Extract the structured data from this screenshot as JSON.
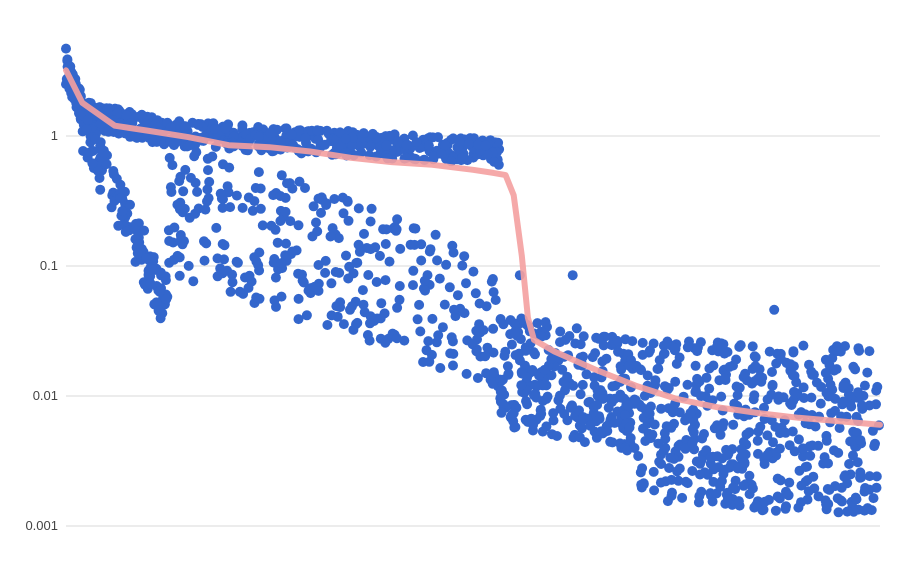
{
  "chart_data": {
    "type": "scatter",
    "title": "",
    "xlabel": "",
    "ylabel": "",
    "y_scale": "log",
    "ylim": [
      0.001,
      4.7
    ],
    "xlim": [
      0,
      2000
    ],
    "grid": true,
    "y_ticks": [
      {
        "value": 1,
        "label": "1"
      },
      {
        "value": 0.1,
        "label": "0.1"
      },
      {
        "value": 0.01,
        "label": "0.01"
      },
      {
        "value": 0.001,
        "label": "0.001"
      }
    ],
    "colors": {
      "points": "#3366cc",
      "trend": "#f4a0a0",
      "grid": "#d9d9d9",
      "text": "#444444"
    },
    "series": [
      {
        "type": "scatter",
        "segments": [
          {
            "x": [
              0,
              40
            ],
            "y_start": 3.2,
            "y_end": 1.6,
            "count": 60,
            "upper_spread": 1.3,
            "lower_spread": 0.75
          },
          {
            "x": [
              40,
              250
            ],
            "y_start": 1.5,
            "y_end": 1.05,
            "count": 180,
            "upper_spread": 1.25,
            "lower_spread": 0.8
          },
          {
            "x": [
              40,
              250
            ],
            "y_start": 1.1,
            "y_end": 0.05,
            "count": 120,
            "upper_spread": 1.6,
            "lower_spread": 0.6
          },
          {
            "x": [
              250,
              1065
            ],
            "y_start": 1.05,
            "y_end": 0.75,
            "count": 360,
            "upper_spread": 1.25,
            "lower_spread": 0.8
          },
          {
            "x": [
              250,
              1065
            ],
            "y_start": 0.3,
            "y_end": 0.035,
            "count": 320,
            "upper_spread": 3.5,
            "lower_spread": 0.3
          },
          {
            "x": [
              1065,
              1400
            ],
            "y_start": 0.015,
            "y_end": 0.009,
            "count": 260,
            "upper_spread": 3.0,
            "lower_spread": 0.4
          },
          {
            "x": [
              1400,
              2000
            ],
            "y_start": 0.007,
            "y_end": 0.006,
            "count": 480,
            "upper_spread": 4.0,
            "lower_spread": 0.2
          }
        ],
        "highlights": [
          {
            "x": 0,
            "y": 4.7
          },
          {
            "x": 1740,
            "y": 0.046
          },
          {
            "x": 1115,
            "y": 0.085
          },
          {
            "x": 1245,
            "y": 0.085
          }
        ]
      },
      {
        "type": "line",
        "x": [
          0,
          40,
          120,
          200,
          300,
          400,
          500,
          600,
          700,
          800,
          900,
          1000,
          1050,
          1080,
          1100,
          1120,
          1135,
          1150,
          1200,
          1300,
          1400,
          1500,
          1600,
          1700,
          1800,
          1900,
          2000
        ],
        "y": [
          3.2,
          1.8,
          1.2,
          1.1,
          0.98,
          0.85,
          0.82,
          0.76,
          0.68,
          0.63,
          0.6,
          0.55,
          0.52,
          0.5,
          0.35,
          0.12,
          0.04,
          0.027,
          0.022,
          0.016,
          0.012,
          0.0095,
          0.0082,
          0.0074,
          0.0068,
          0.0064,
          0.006
        ]
      }
    ]
  }
}
